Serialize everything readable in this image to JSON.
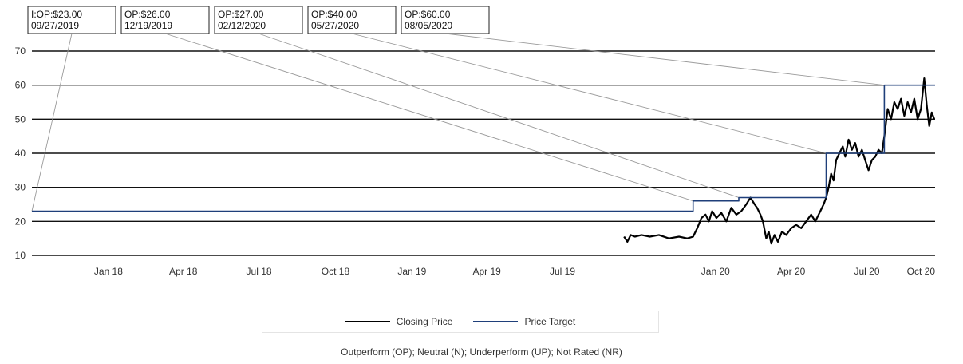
{
  "chart_data": {
    "type": "line",
    "title": "",
    "xlabel": "",
    "ylabel": "",
    "ylim": [
      10,
      70
    ],
    "yticks": [
      10,
      20,
      30,
      40,
      50,
      60,
      70
    ],
    "xlim": [
      "2017-10-15",
      "2020-10-05"
    ],
    "xticks": [
      {
        "label": "Jan 18",
        "date": "2018-01-15"
      },
      {
        "label": "Apr 18",
        "date": "2018-04-15"
      },
      {
        "label": "Jul 18",
        "date": "2018-07-15"
      },
      {
        "label": "Oct 18",
        "date": "2018-10-15"
      },
      {
        "label": "Jan 19",
        "date": "2019-01-15"
      },
      {
        "label": "Apr 19",
        "date": "2019-04-15"
      },
      {
        "label": "Jul 19",
        "date": "2019-07-15"
      },
      {
        "label": "Jan 20",
        "date": "2020-01-15"
      },
      {
        "label": "Apr 20",
        "date": "2020-04-15"
      },
      {
        "label": "Jul 20",
        "date": "2020-07-15"
      },
      {
        "label": "Oct 20",
        "date": "2020-10-05"
      }
    ],
    "grid": "horizontal",
    "legend_position": "bottom",
    "series": [
      {
        "name": "Closing Price",
        "color": "#000000",
        "points": [
          [
            "2019-09-27",
            15.5
          ],
          [
            "2019-10-01",
            14.0
          ],
          [
            "2019-10-05",
            16.0
          ],
          [
            "2019-10-10",
            15.5
          ],
          [
            "2019-10-18",
            16.0
          ],
          [
            "2019-10-28",
            15.5
          ],
          [
            "2019-11-08",
            16.0
          ],
          [
            "2019-11-20",
            15.0
          ],
          [
            "2019-12-02",
            15.5
          ],
          [
            "2019-12-12",
            15.0
          ],
          [
            "2019-12-19",
            15.5
          ],
          [
            "2019-12-24",
            18.0
          ],
          [
            "2019-12-29",
            21.0
          ],
          [
            "2020-01-03",
            22.0
          ],
          [
            "2020-01-07",
            20.0
          ],
          [
            "2020-01-11",
            23.0
          ],
          [
            "2020-01-16",
            21.0
          ],
          [
            "2020-01-22",
            22.5
          ],
          [
            "2020-01-28",
            20.0
          ],
          [
            "2020-02-03",
            24.0
          ],
          [
            "2020-02-09",
            22.0
          ],
          [
            "2020-02-15",
            23.0
          ],
          [
            "2020-02-21",
            25.0
          ],
          [
            "2020-02-26",
            27.0
          ],
          [
            "2020-03-02",
            25.0
          ],
          [
            "2020-03-05",
            24.0
          ],
          [
            "2020-03-09",
            22.0
          ],
          [
            "2020-03-12",
            20.0
          ],
          [
            "2020-03-16",
            15.0
          ],
          [
            "2020-03-19",
            17.0
          ],
          [
            "2020-03-22",
            13.5
          ],
          [
            "2020-03-26",
            16.0
          ],
          [
            "2020-03-30",
            14.0
          ],
          [
            "2020-04-04",
            17.0
          ],
          [
            "2020-04-09",
            16.0
          ],
          [
            "2020-04-15",
            18.0
          ],
          [
            "2020-04-21",
            19.0
          ],
          [
            "2020-04-27",
            18.0
          ],
          [
            "2020-05-03",
            20.0
          ],
          [
            "2020-05-09",
            22.0
          ],
          [
            "2020-05-14",
            20.0
          ],
          [
            "2020-05-20",
            23.0
          ],
          [
            "2020-05-24",
            25.0
          ],
          [
            "2020-05-27",
            27.0
          ],
          [
            "2020-05-30",
            30.0
          ],
          [
            "2020-06-02",
            34.0
          ],
          [
            "2020-06-05",
            32.0
          ],
          [
            "2020-06-08",
            38.0
          ],
          [
            "2020-06-12",
            40.0
          ],
          [
            "2020-06-16",
            42.0
          ],
          [
            "2020-06-19",
            39.0
          ],
          [
            "2020-06-23",
            44.0
          ],
          [
            "2020-06-27",
            41.0
          ],
          [
            "2020-07-01",
            43.0
          ],
          [
            "2020-07-05",
            39.0
          ],
          [
            "2020-07-09",
            41.0
          ],
          [
            "2020-07-13",
            38.0
          ],
          [
            "2020-07-17",
            35.0
          ],
          [
            "2020-07-21",
            38.0
          ],
          [
            "2020-07-25",
            39.0
          ],
          [
            "2020-07-29",
            41.0
          ],
          [
            "2020-08-02",
            40.0
          ],
          [
            "2020-08-05",
            45.0
          ],
          [
            "2020-08-09",
            53.0
          ],
          [
            "2020-08-13",
            50.0
          ],
          [
            "2020-08-17",
            55.0
          ],
          [
            "2020-08-21",
            53.0
          ],
          [
            "2020-08-25",
            56.0
          ],
          [
            "2020-08-29",
            51.0
          ],
          [
            "2020-09-02",
            55.0
          ],
          [
            "2020-09-06",
            52.0
          ],
          [
            "2020-09-10",
            56.0
          ],
          [
            "2020-09-14",
            50.0
          ],
          [
            "2020-09-18",
            53.0
          ],
          [
            "2020-09-22",
            62.0
          ],
          [
            "2020-09-25",
            54.0
          ],
          [
            "2020-09-28",
            48.0
          ],
          [
            "2020-10-01",
            52.0
          ],
          [
            "2020-10-04",
            50.0
          ]
        ]
      },
      {
        "name": "Price Target",
        "color": "#1f3f7a",
        "step": true,
        "points": [
          [
            "2017-10-15",
            23.0
          ],
          [
            "2019-12-19",
            23.0
          ],
          [
            "2019-12-19",
            26.0
          ],
          [
            "2020-02-12",
            26.0
          ],
          [
            "2020-02-12",
            27.0
          ],
          [
            "2020-05-27",
            27.0
          ],
          [
            "2020-05-27",
            40.0
          ],
          [
            "2020-08-05",
            40.0
          ],
          [
            "2020-08-05",
            60.0
          ],
          [
            "2020-10-05",
            60.0
          ]
        ]
      }
    ],
    "annotations": [
      {
        "line1": "I:OP:$23.00",
        "line2": "09/27/2019",
        "date": "2017-10-15",
        "value": 23.0
      },
      {
        "line1": "OP:$26.00",
        "line2": "12/19/2019",
        "date": "2019-12-19",
        "value": 26.0
      },
      {
        "line1": "OP:$27.00",
        "line2": "02/12/2020",
        "date": "2020-02-12",
        "value": 27.0
      },
      {
        "line1": "OP:$40.00",
        "line2": "05/27/2020",
        "date": "2020-05-27",
        "value": 40.0
      },
      {
        "line1": "OP:$60.00",
        "line2": "08/05/2020",
        "date": "2020-08-05",
        "value": 60.0
      }
    ],
    "legend": [
      "Closing Price",
      "Price Target"
    ],
    "footnote": "Outperform (OP); Neutral (N); Underperform (UP); Not Rated (NR)"
  }
}
